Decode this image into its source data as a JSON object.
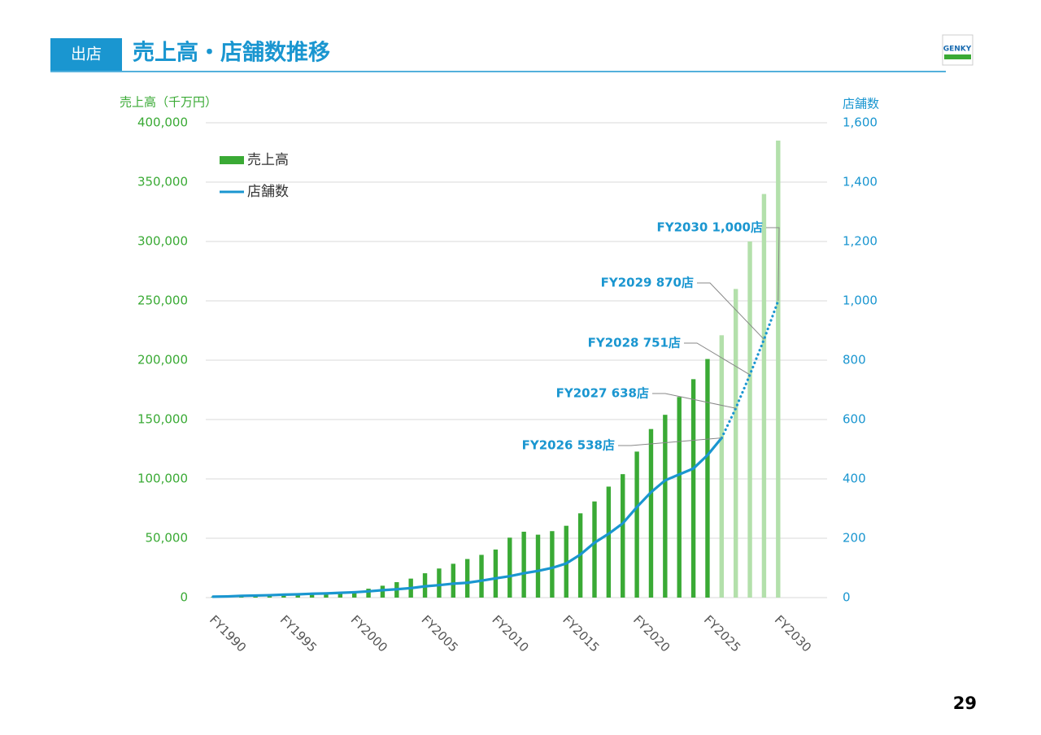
{
  "header": {
    "section": "出店",
    "title": "売上高・店舗数推移",
    "logo": "GENKY"
  },
  "page_number": "29",
  "chart_data": {
    "type": "bar_line",
    "y_axis_label": "売上高（千万円）",
    "y2_axis_label": "店舗数",
    "categories": [
      "FY1990",
      null,
      null,
      null,
      null,
      "FY1995",
      null,
      null,
      null,
      null,
      "FY2000",
      null,
      null,
      null,
      null,
      "FY2005",
      null,
      null,
      null,
      null,
      "FY2010",
      null,
      null,
      null,
      null,
      "FY2015",
      null,
      null,
      null,
      null,
      "FY2020",
      null,
      null,
      null,
      null,
      "FY2025",
      null,
      null,
      null,
      null,
      "FY2030"
    ],
    "forecast_start": "FY2026",
    "series": [
      {
        "name": "売上高",
        "color": "#3aaa35",
        "forecast_color": "#b3e0ab",
        "values": [
          500,
          700,
          1000,
          1300,
          1600,
          2000,
          2400,
          2800,
          3200,
          4000,
          5500,
          7500,
          10000,
          13000,
          16000,
          20500,
          24500,
          28500,
          32500,
          36000,
          40500,
          50500,
          55500,
          53000,
          56000,
          60500,
          71000,
          81000,
          93500,
          104000,
          123000,
          142000,
          154000,
          169000,
          184000,
          201000,
          221000,
          260000,
          300000,
          340000,
          385000
        ]
      },
      {
        "name": "店舗数",
        "color": "#1a96d0",
        "axis": "y2",
        "values": [
          3,
          4,
          6,
          7,
          8,
          10,
          11,
          13,
          14,
          16,
          18,
          21,
          25,
          28,
          32,
          38,
          42,
          47,
          50,
          57,
          65,
          72,
          82,
          90,
          100,
          115,
          145,
          185,
          215,
          250,
          305,
          355,
          395,
          415,
          435,
          480,
          538,
          638,
          751,
          870,
          1000
        ]
      }
    ],
    "annotations": [
      "FY2026 538店",
      "FY2027 638店",
      "FY2028 751店",
      "FY2029 870店",
      "FY2030 1,000店"
    ],
    "ylim": [
      0,
      400000
    ],
    "yticks": [
      0,
      {
        "value": 50000,
        "label": "50,000"
      },
      {
        "value": 100000,
        "label": "100,000"
      },
      {
        "value": 150000,
        "label": "150,000"
      },
      {
        "value": 200000,
        "label": "200,000"
      },
      {
        "value": 250000,
        "label": "250,000"
      },
      {
        "value": 300000,
        "label": "300,000"
      },
      {
        "value": 350000,
        "label": "350,000"
      },
      {
        "value": 400000,
        "label": "400,000"
      }
    ],
    "y2lim": [
      0,
      1600
    ],
    "y2ticks": [
      0,
      200,
      400,
      600,
      800,
      {
        "value": 1000,
        "label": "1,000"
      },
      {
        "value": 1200,
        "label": "1,200"
      },
      {
        "value": 1400,
        "label": "1,400"
      },
      {
        "value": 1600,
        "label": "1,600"
      }
    ],
    "grid": true
  }
}
